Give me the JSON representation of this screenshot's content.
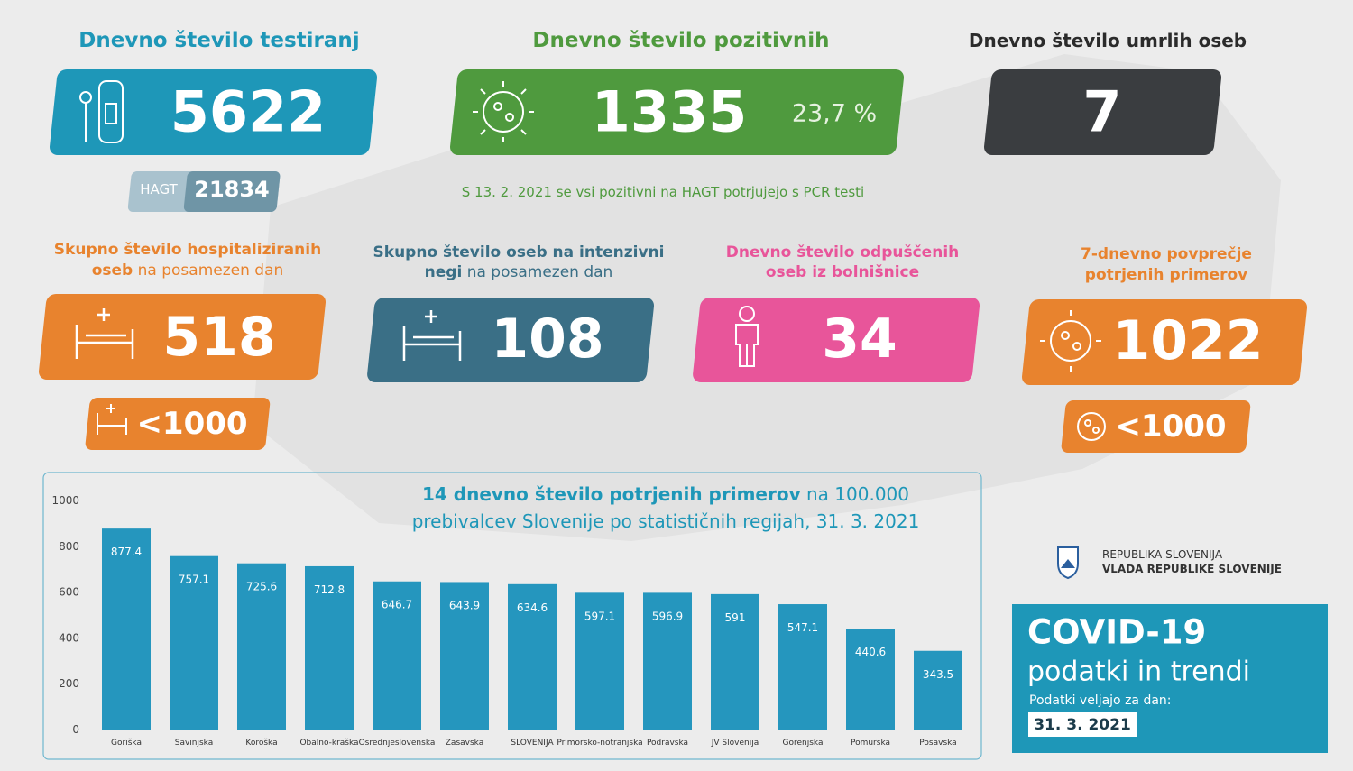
{
  "testing": {
    "title": "Dnevno število testiranj",
    "value": 5622,
    "sub_label": "HAGT",
    "sub_value": 21834
  },
  "positive": {
    "title": "Dnevno število pozitivnih",
    "value": 1335,
    "share": "23,7 %",
    "note": "S 13. 2. 2021 se vsi pozitivni na HAGT potrjujejo s PCR testi"
  },
  "deaths": {
    "title": "Dnevno število umrlih oseb",
    "value": 7
  },
  "hospitalized": {
    "title_lines": [
      "Skupno število hospitaliziranih",
      "oseb"
    ],
    "title_suffix": "na posamezen dan",
    "value": 518,
    "sub_value": "<1000"
  },
  "icu": {
    "title_lines": [
      "Skupno število oseb na intenzivni",
      "negi"
    ],
    "title_suffix": "na posamezen dan",
    "value": 108
  },
  "discharged": {
    "title_lines": [
      "Dnevno število odpuščenih",
      "oseb iz bolnišnice"
    ],
    "value": 34
  },
  "average": {
    "title_lines": [
      "7-dnevno povprečje",
      "potrjenih primerov"
    ],
    "value": 1022,
    "sub_value": "<1000"
  },
  "chart_data": {
    "type": "bar",
    "title_bold": "14 dnevno število potrjenih primerov",
    "title_rest": "na 100.000",
    "title_line2": "prebivalcev Slovenije po statističnih regijah, 31. 3. 2021",
    "categories": [
      "Goriška",
      "Savinjska",
      "Koroška",
      "Obalno-kraška",
      "Osrednjeslovenska",
      "Zasavska",
      "SLOVENIJA",
      "Primorsko-notranjska",
      "Podravska",
      "JV Slovenija",
      "Gorenjska",
      "Pomurska",
      "Posavska"
    ],
    "values": [
      877.4,
      757.1,
      725.6,
      712.8,
      646.7,
      643.9,
      634.6,
      597.1,
      596.9,
      591,
      547.1,
      440.6,
      343.5
    ],
    "color": "#2596be",
    "ylim": [
      0,
      1000
    ],
    "yticks": [
      0,
      200,
      400,
      600,
      800,
      1000
    ],
    "grid": false
  },
  "branding": {
    "line1": "REPUBLIKA SLOVENIJA",
    "line2": "VLADA REPUBLIKE SLOVENIJE"
  },
  "footer": {
    "title": "COVID-19",
    "subtitle": "podatki in trendi",
    "date_label": "Podatki veljajo za dan:",
    "date": "31. 3. 2021"
  }
}
